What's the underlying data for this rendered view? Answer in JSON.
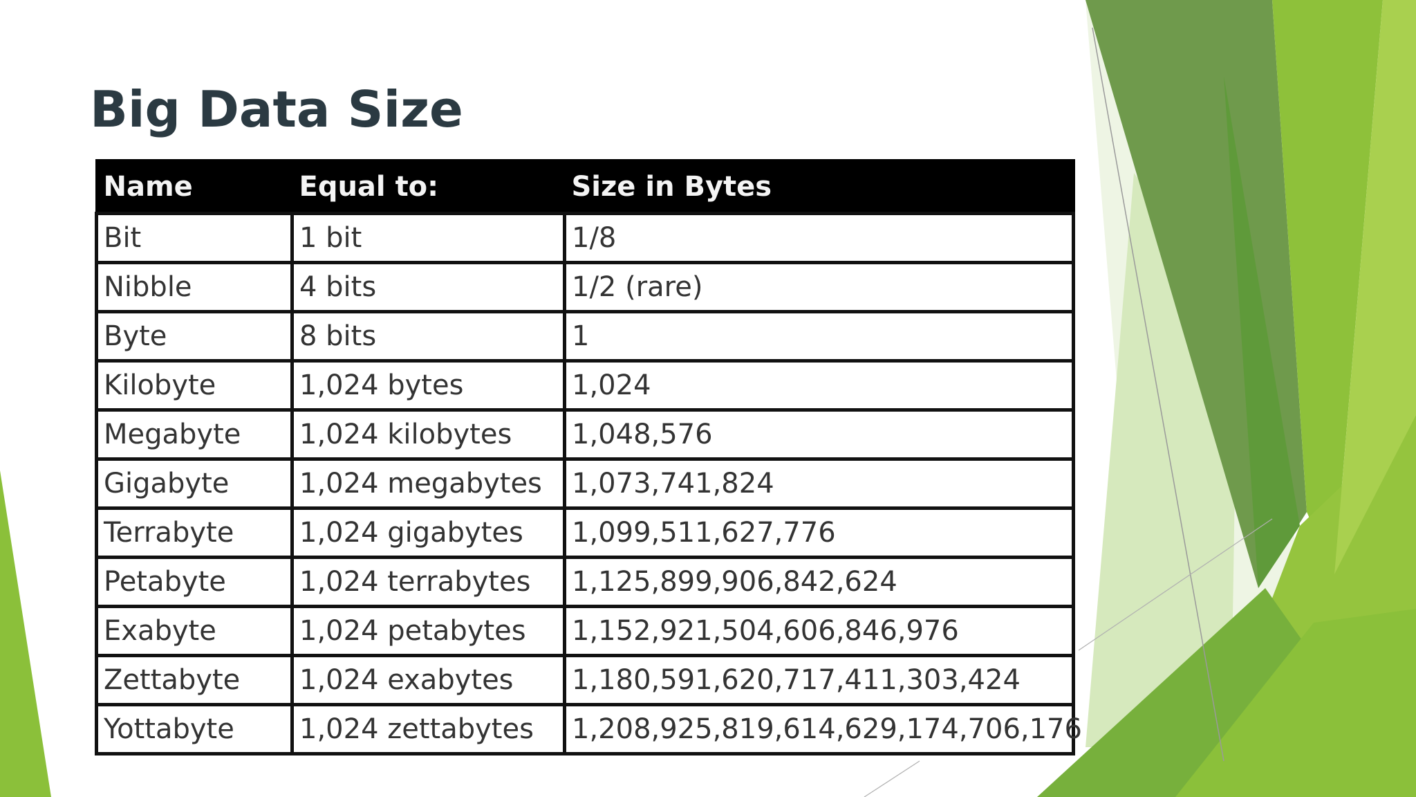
{
  "slide": {
    "title": "Big Data Size"
  },
  "table": {
    "headers": [
      "Name",
      "Equal to:",
      "Size in Bytes"
    ],
    "rows": [
      [
        "Bit",
        "1 bit",
        "1/8"
      ],
      [
        "Nibble",
        "4 bits",
        "1/2 (rare)"
      ],
      [
        "Byte",
        "8 bits",
        "1"
      ],
      [
        "Kilobyte",
        "1,024 bytes",
        "1,024"
      ],
      [
        "Megabyte",
        "1,024 kilobytes",
        "1,048,576"
      ],
      [
        "Gigabyte",
        "1,024 megabytes",
        "1,073,741,824"
      ],
      [
        "Terrabyte",
        "1,024 gigabytes",
        "1,099,511,627,776"
      ],
      [
        "Petabyte",
        "1,024 terrabytes",
        "1,125,899,906,842,624"
      ],
      [
        "Exabyte",
        "1,024 petabytes",
        "1,152,921,504,606,846,976"
      ],
      [
        "Zettabyte",
        "1,024 exabytes",
        "1,180,591,620,717,411,303,424"
      ],
      [
        "Yottabyte",
        "1,024 zettabytes",
        "1,208,925,819,614,629,174,706,176"
      ]
    ]
  },
  "colors": {
    "title": "#2b3a42",
    "header_background": "#000000",
    "accent_green_dark": "#6b9a4a",
    "accent_green": "#8bc03a",
    "accent_green_light": "#c9e0a8"
  }
}
